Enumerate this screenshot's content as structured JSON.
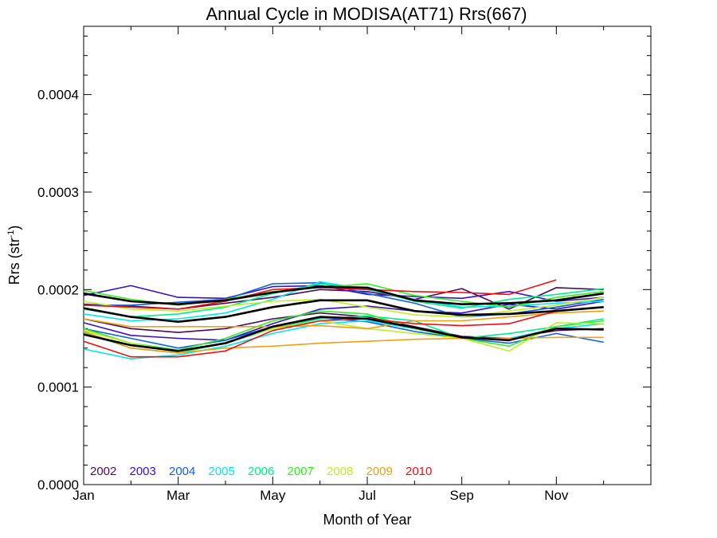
{
  "chart_data": {
    "type": "line",
    "title": "Annual Cycle in MODISA(AT71) Rrs(667)",
    "xlabel": "Month of Year",
    "ylabel_main": "Rrs (str",
    "ylabel_sup": "-1",
    "ylabel_close": ")",
    "xlim": [
      1,
      13
    ],
    "ylim": [
      0,
      0.00047
    ],
    "x_ticks": [
      {
        "value": 1,
        "label": "Jan"
      },
      {
        "value": 3,
        "label": "Mar"
      },
      {
        "value": 5,
        "label": "May"
      },
      {
        "value": 7,
        "label": "Jul"
      },
      {
        "value": 9,
        "label": "Sep"
      },
      {
        "value": 11,
        "label": "Nov"
      }
    ],
    "y_ticks": [
      {
        "value": 0,
        "label": "0.0000"
      },
      {
        "value": 0.0001,
        "label": "0.0001"
      },
      {
        "value": 0.0002,
        "label": "0.0002"
      },
      {
        "value": 0.0003,
        "label": "0.0003"
      },
      {
        "value": 0.0004,
        "label": "0.0004"
      }
    ],
    "legend_placement": "bottom-left",
    "grid": false,
    "x": [
      1,
      2,
      3,
      4,
      5,
      6,
      7,
      8,
      9,
      10,
      11,
      12
    ],
    "series": [
      {
        "name": "2002",
        "color": "#4a0a5e",
        "line": "a",
        "values": [
          0.000185,
          0.000183,
          0.00018,
          0.000186,
          0.000192,
          0.0002,
          0.000198,
          0.00019,
          0.000201,
          0.00018,
          0.000202,
          0.0002
        ]
      },
      {
        "name": "2002",
        "color": "#4a0a5e",
        "line": "b",
        "values": [
          0.00017,
          0.00016,
          0.000156,
          0.00016,
          0.00017,
          0.000176,
          0.000172,
          0.000162,
          0.000152,
          0.00015,
          0.000158,
          0.00016
        ]
      },
      {
        "name": "2003",
        "color": "#3a10c8",
        "line": "a",
        "values": [
          0.000194,
          0.000204,
          0.000192,
          0.000191,
          0.000203,
          0.000204,
          0.000195,
          0.000193,
          0.000191,
          0.000198,
          0.000188,
          0.000192
        ]
      },
      {
        "name": "2003",
        "color": "#3a10c8",
        "line": "b",
        "values": [
          0.000166,
          0.000153,
          0.00015,
          0.000148,
          0.000165,
          0.00018,
          0.000183,
          0.000178,
          0.000176,
          0.000185,
          0.00018,
          0.000188
        ]
      },
      {
        "name": "2004",
        "color": "#1060e8",
        "line": "a",
        "values": [
          0.000184,
          0.000184,
          0.000187,
          0.00019,
          0.000206,
          0.000207,
          0.000196,
          0.000186,
          0.000172,
          0.000175,
          0.000182,
          0.00019
        ]
      },
      {
        "name": "2004",
        "color": "#1060e8",
        "line": "b",
        "values": [
          0.00016,
          0.00015,
          0.00014,
          0.000148,
          0.000162,
          0.000171,
          0.000167,
          0.000157,
          0.00015,
          0.000145,
          0.000155,
          0.000146
        ]
      },
      {
        "name": "2005",
        "color": "#00e8f0",
        "line": "a",
        "values": [
          0.000175,
          0.000168,
          0.00017,
          0.000176,
          0.00019,
          0.000208,
          0.0002,
          0.00019,
          0.000182,
          0.000183,
          0.000186,
          0.000188
        ]
      },
      {
        "name": "2005",
        "color": "#00e8f0",
        "line": "b",
        "values": [
          0.000139,
          0.000129,
          0.000133,
          0.000142,
          0.000155,
          0.000165,
          0.000168,
          0.00016,
          0.00015,
          0.00015,
          0.00016,
          0.000165
        ]
      },
      {
        "name": "2006",
        "color": "#00f088",
        "line": "a",
        "values": [
          0.00018,
          0.000172,
          0.000175,
          0.000182,
          0.000196,
          0.000206,
          0.000201,
          0.000188,
          0.000181,
          0.00019,
          0.000195,
          0.000201
        ]
      },
      {
        "name": "2006",
        "color": "#00f088",
        "line": "b",
        "values": [
          0.000156,
          0.00014,
          0.000135,
          0.000145,
          0.00016,
          0.00017,
          0.000173,
          0.000168,
          0.00015,
          0.000155,
          0.000162,
          0.00017
        ]
      },
      {
        "name": "2007",
        "color": "#30f020",
        "line": "a",
        "values": [
          0.000199,
          0.00019,
          0.000184,
          0.00019,
          0.000198,
          0.000202,
          0.000206,
          0.000194,
          0.000188,
          0.000182,
          0.000192,
          0.000198
        ]
      },
      {
        "name": "2007",
        "color": "#30f020",
        "line": "b",
        "values": [
          0.00016,
          0.000145,
          0.000138,
          0.00015,
          0.000168,
          0.000178,
          0.000175,
          0.00016,
          0.00015,
          0.000142,
          0.000162,
          0.000168
        ]
      },
      {
        "name": "2008",
        "color": "#c0f020",
        "line": "a",
        "values": [
          0.000188,
          0.00018,
          0.000178,
          0.000183,
          0.000188,
          0.00019,
          0.000182,
          0.000174,
          0.000172,
          0.000178,
          0.000184,
          0.000192
        ]
      },
      {
        "name": "2008",
        "color": "#c0f020",
        "line": "b",
        "values": [
          0.000158,
          0.000145,
          0.000136,
          0.000146,
          0.00016,
          0.000168,
          0.00016,
          0.000155,
          0.00015,
          0.000137,
          0.000166,
          0.000165
        ]
      },
      {
        "name": "2009",
        "color": "#f0a010",
        "line": "a",
        "values": [
          0.00017,
          0.000162,
          0.000162,
          0.000162,
          0.000162,
          0.000163,
          0.00016,
          0.000168,
          0.000168,
          0.000172,
          0.000176,
          0.000178
        ]
      },
      {
        "name": "2009",
        "color": "#f0a010",
        "line": "b",
        "values": [
          0.000157,
          0.00014,
          0.000135,
          0.00014,
          0.000142,
          0.000145,
          0.000147,
          0.000149,
          0.00015,
          0.00015,
          0.000151,
          0.000151
        ]
      },
      {
        "name": "2010",
        "color": "#f01010",
        "line": "a",
        "values": [
          0.000184,
          0.000182,
          0.00018,
          0.000188,
          0.0002,
          0.000202,
          0.0002,
          0.000198,
          0.000197,
          0.000195,
          0.00021,
          null
        ]
      },
      {
        "name": "2010",
        "color": "#f01010",
        "line": "b",
        "values": [
          0.000147,
          0.000131,
          0.000131,
          0.000137,
          0.000158,
          0.000168,
          0.00017,
          0.000165,
          0.000163,
          0.000165,
          0.000178,
          null
        ]
      },
      {
        "name": "",
        "color": "#000000",
        "line": "mean-hi",
        "values": [
          0.000196,
          0.000188,
          0.000185,
          0.000189,
          0.000197,
          0.000203,
          0.000202,
          0.000189,
          0.000185,
          0.000186,
          0.000189,
          0.000196
        ]
      },
      {
        "name": "",
        "color": "#000000",
        "line": "mean-mid",
        "values": [
          0.000181,
          0.000172,
          0.000167,
          0.000172,
          0.000182,
          0.000189,
          0.000189,
          0.000178,
          0.000174,
          0.000175,
          0.000178,
          0.000182
        ]
      },
      {
        "name": "",
        "color": "#000000",
        "line": "mean-lo",
        "values": [
          0.000154,
          0.000143,
          0.000137,
          0.000145,
          0.000162,
          0.000172,
          0.00017,
          0.000161,
          0.000151,
          0.000148,
          0.00016,
          0.000159
        ]
      }
    ],
    "legend": [
      {
        "label": "2002",
        "color": "#4a0a5e"
      },
      {
        "label": "2003",
        "color": "#3a10c8"
      },
      {
        "label": "2004",
        "color": "#1060e8"
      },
      {
        "label": "2005",
        "color": "#00e8f0"
      },
      {
        "label": "2006",
        "color": "#00f088"
      },
      {
        "label": "2007",
        "color": "#30f020"
      },
      {
        "label": "2008",
        "color": "#c0f020"
      },
      {
        "label": "2009",
        "color": "#f0a010"
      },
      {
        "label": "2010",
        "color": "#f01010"
      }
    ]
  }
}
